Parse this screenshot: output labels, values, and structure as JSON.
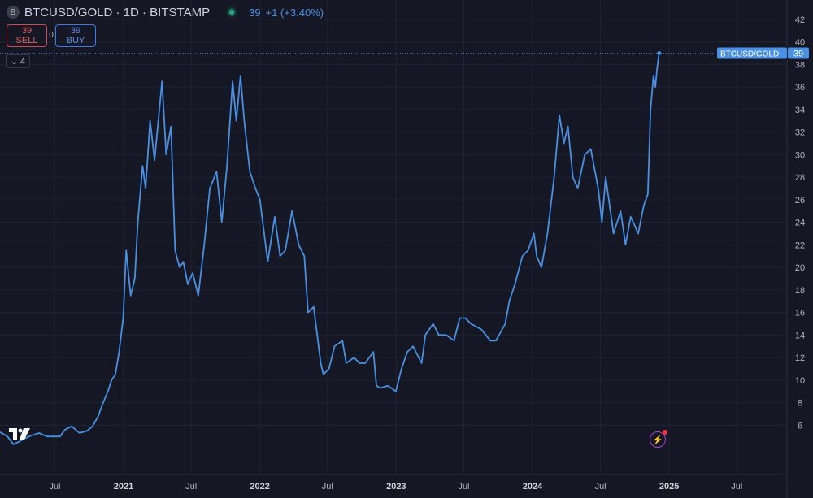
{
  "header": {
    "symbol_badge": "B",
    "title": "BTCUSD/GOLD · 1D · BITSTAMP",
    "last": "39",
    "change": "+1 (+3.40%)"
  },
  "trade": {
    "sell_price": "39",
    "sell_label": "SELL",
    "spread": "0",
    "buy_price": "39",
    "buy_label": "BUY"
  },
  "collapse": {
    "count": "4"
  },
  "colors": {
    "background": "#151824",
    "line": "#4a90e2",
    "grid": "#1f2331"
  },
  "chart_data": {
    "type": "line",
    "series": [
      {
        "name": "BTCUSD/GOLD",
        "values": [
          [
            "2020-01-01",
            5.2
          ],
          [
            "2020-01-20",
            5.6
          ],
          [
            "2020-02-10",
            5.3
          ],
          [
            "2020-02-25",
            5.0
          ],
          [
            "2020-03-12",
            4.3
          ],
          [
            "2020-03-25",
            4.5
          ],
          [
            "2020-04-10",
            4.8
          ],
          [
            "2020-04-30",
            5.1
          ],
          [
            "2020-05-20",
            5.3
          ],
          [
            "2020-06-10",
            5.0
          ],
          [
            "2020-06-30",
            5.0
          ],
          [
            "2020-07-15",
            5.0
          ],
          [
            "2020-07-28",
            5.6
          ],
          [
            "2020-08-15",
            5.9
          ],
          [
            "2020-09-05",
            5.3
          ],
          [
            "2020-09-25",
            5.5
          ],
          [
            "2020-10-10",
            5.9
          ],
          [
            "2020-10-25",
            6.8
          ],
          [
            "2020-11-05",
            7.8
          ],
          [
            "2020-11-20",
            9.0
          ],
          [
            "2020-11-30",
            10.0
          ],
          [
            "2020-12-10",
            10.5
          ],
          [
            "2020-12-20",
            12.5
          ],
          [
            "2020-12-31",
            15.5
          ],
          [
            "2021-01-08",
            21.5
          ],
          [
            "2021-01-20",
            17.5
          ],
          [
            "2021-01-31",
            19.0
          ],
          [
            "2021-02-08",
            24.0
          ],
          [
            "2021-02-21",
            29.0
          ],
          [
            "2021-03-01",
            27.0
          ],
          [
            "2021-03-13",
            33.0
          ],
          [
            "2021-03-25",
            29.5
          ],
          [
            "2021-04-14",
            36.5
          ],
          [
            "2021-04-25",
            30.0
          ],
          [
            "2021-05-08",
            32.5
          ],
          [
            "2021-05-19",
            21.5
          ],
          [
            "2021-05-31",
            20.0
          ],
          [
            "2021-06-10",
            20.5
          ],
          [
            "2021-06-22",
            18.5
          ],
          [
            "2021-07-05",
            19.5
          ],
          [
            "2021-07-20",
            17.5
          ],
          [
            "2021-08-05",
            22.0
          ],
          [
            "2021-08-20",
            27.0
          ],
          [
            "2021-09-07",
            28.5
          ],
          [
            "2021-09-21",
            24.0
          ],
          [
            "2021-10-05",
            29.0
          ],
          [
            "2021-10-20",
            36.5
          ],
          [
            "2021-10-30",
            33.0
          ],
          [
            "2021-11-10",
            37.0
          ],
          [
            "2021-11-20",
            33.0
          ],
          [
            "2021-12-05",
            28.5
          ],
          [
            "2021-12-20",
            27.0
          ],
          [
            "2022-01-01",
            26.0
          ],
          [
            "2022-01-22",
            20.5
          ],
          [
            "2022-02-10",
            24.5
          ],
          [
            "2022-02-24",
            21.0
          ],
          [
            "2022-03-10",
            21.5
          ],
          [
            "2022-03-28",
            25.0
          ],
          [
            "2022-04-15",
            22.0
          ],
          [
            "2022-04-30",
            21.0
          ],
          [
            "2022-05-10",
            16.0
          ],
          [
            "2022-05-25",
            16.5
          ],
          [
            "2022-06-13",
            11.5
          ],
          [
            "2022-06-20",
            10.5
          ],
          [
            "2022-07-05",
            11.0
          ],
          [
            "2022-07-20",
            13.0
          ],
          [
            "2022-08-10",
            13.5
          ],
          [
            "2022-08-20",
            11.5
          ],
          [
            "2022-09-10",
            12.0
          ],
          [
            "2022-09-25",
            11.5
          ],
          [
            "2022-10-10",
            11.5
          ],
          [
            "2022-11-01",
            12.5
          ],
          [
            "2022-11-09",
            9.5
          ],
          [
            "2022-11-20",
            9.3
          ],
          [
            "2022-12-10",
            9.5
          ],
          [
            "2022-12-31",
            9.0
          ],
          [
            "2023-01-15",
            11.0
          ],
          [
            "2023-01-31",
            12.5
          ],
          [
            "2023-02-15",
            13.0
          ],
          [
            "2023-03-10",
            11.5
          ],
          [
            "2023-03-20",
            14.0
          ],
          [
            "2023-04-10",
            15.0
          ],
          [
            "2023-04-25",
            14.0
          ],
          [
            "2023-05-15",
            14.0
          ],
          [
            "2023-06-05",
            13.5
          ],
          [
            "2023-06-20",
            15.5
          ],
          [
            "2023-07-05",
            15.5
          ],
          [
            "2023-07-20",
            15.0
          ],
          [
            "2023-08-17",
            14.5
          ],
          [
            "2023-09-10",
            13.5
          ],
          [
            "2023-09-25",
            13.5
          ],
          [
            "2023-10-20",
            15.0
          ],
          [
            "2023-10-31",
            17.0
          ],
          [
            "2023-11-15",
            18.5
          ],
          [
            "2023-12-05",
            21.0
          ],
          [
            "2023-12-20",
            21.5
          ],
          [
            "2024-01-05",
            23.0
          ],
          [
            "2024-01-12",
            21.0
          ],
          [
            "2024-01-25",
            20.0
          ],
          [
            "2024-02-10",
            23.0
          ],
          [
            "2024-02-28",
            28.0
          ],
          [
            "2024-03-13",
            33.5
          ],
          [
            "2024-03-25",
            31.0
          ],
          [
            "2024-04-05",
            32.5
          ],
          [
            "2024-04-18",
            28.0
          ],
          [
            "2024-05-01",
            27.0
          ],
          [
            "2024-05-20",
            30.0
          ],
          [
            "2024-06-05",
            30.5
          ],
          [
            "2024-06-25",
            27.0
          ],
          [
            "2024-07-05",
            24.0
          ],
          [
            "2024-07-15",
            28.0
          ],
          [
            "2024-08-05",
            23.0
          ],
          [
            "2024-08-24",
            25.0
          ],
          [
            "2024-09-06",
            22.0
          ],
          [
            "2024-09-20",
            24.5
          ],
          [
            "2024-10-10",
            23.0
          ],
          [
            "2024-10-25",
            25.5
          ],
          [
            "2024-11-05",
            26.5
          ],
          [
            "2024-11-12",
            34.0
          ],
          [
            "2024-11-20",
            37.0
          ],
          [
            "2024-11-25",
            36.0
          ],
          [
            "2024-11-29",
            37.5
          ],
          [
            "2024-12-05",
            39.0
          ]
        ]
      }
    ],
    "last_value": 39,
    "last_label": "BTCUSD/GOLD",
    "ylim": [
      3.5,
      43
    ],
    "y_ticks": [
      6,
      8,
      10,
      12,
      14,
      16,
      18,
      20,
      22,
      24,
      26,
      28,
      30,
      32,
      34,
      36,
      38,
      40,
      42
    ],
    "x_ticks": [
      {
        "date": "2020-07-01",
        "label": "Jul",
        "bold": false
      },
      {
        "date": "2021-01-01",
        "label": "2021",
        "bold": true
      },
      {
        "date": "2021-07-01",
        "label": "Jul",
        "bold": false
      },
      {
        "date": "2022-01-01",
        "label": "2022",
        "bold": true
      },
      {
        "date": "2022-07-01",
        "label": "Jul",
        "bold": false
      },
      {
        "date": "2023-01-01",
        "label": "2023",
        "bold": true
      },
      {
        "date": "2023-07-01",
        "label": "Jul",
        "bold": false
      },
      {
        "date": "2024-01-01",
        "label": "2024",
        "bold": true
      },
      {
        "date": "2024-07-01",
        "label": "Jul",
        "bold": false
      },
      {
        "date": "2025-01-01",
        "label": "2025",
        "bold": true
      },
      {
        "date": "2025-07-01",
        "label": "Jul",
        "bold": false
      }
    ],
    "grid": true,
    "y_axis_position": "right"
  }
}
